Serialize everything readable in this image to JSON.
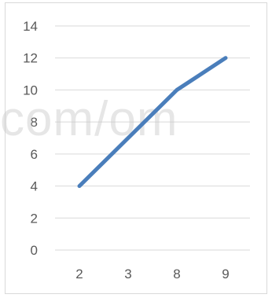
{
  "chart_data": {
    "type": "line",
    "categories": [
      "2",
      "3",
      "8",
      "9"
    ],
    "series": [
      {
        "values": [
          4,
          7,
          10,
          12
        ],
        "color": "#4a7ebb"
      }
    ],
    "ylim": [
      0,
      14
    ],
    "yticks": [
      0,
      2,
      4,
      6,
      8,
      10,
      12,
      14
    ],
    "grid": true,
    "legend": "none",
    "title": "",
    "xlabel": "",
    "ylabel": ""
  },
  "watermark": "com/om",
  "colors": {
    "gridline": "#d9d9d9",
    "axis_text": "#595959",
    "series_line": "#4a7ebb"
  }
}
